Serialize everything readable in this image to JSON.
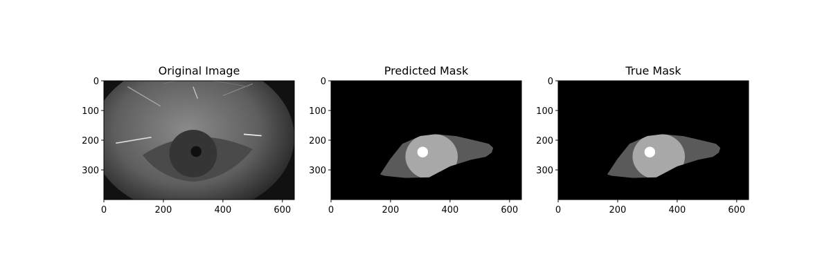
{
  "chart_data": [
    {
      "type": "image",
      "title": "Original Image",
      "xlim": [
        0,
        640
      ],
      "ylim": [
        400,
        0
      ],
      "xticks": [
        0,
        200,
        400,
        600
      ],
      "yticks": [
        0,
        100,
        200,
        300
      ],
      "image": "original"
    },
    {
      "type": "image",
      "title": "Predicted Mask",
      "xlim": [
        0,
        640
      ],
      "ylim": [
        400,
        0
      ],
      "xticks": [
        0,
        200,
        400,
        600
      ],
      "yticks": [
        0,
        100,
        200,
        300
      ],
      "image": "predicted"
    },
    {
      "type": "image",
      "title": "True Mask",
      "xlim": [
        0,
        640
      ],
      "ylim": [
        400,
        0
      ],
      "xticks": [
        0,
        200,
        400,
        600
      ],
      "yticks": [
        0,
        100,
        200,
        300
      ],
      "image": "true"
    }
  ]
}
